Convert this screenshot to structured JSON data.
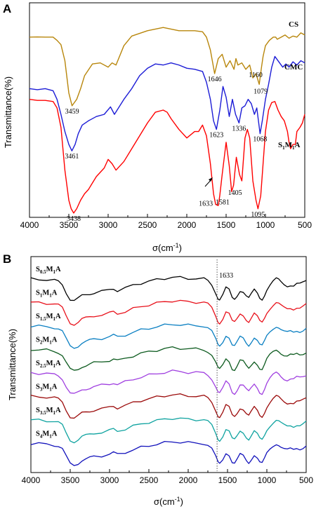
{
  "chart_data": [
    {
      "panel": "A",
      "type": "line",
      "xlabel": "σ(cm-1)",
      "ylabel": "Transmittance(%)",
      "xlim": [
        4000,
        500
      ],
      "x_reversed": true,
      "xticks": [
        4000,
        3500,
        3000,
        2500,
        2000,
        1500,
        1000,
        500
      ],
      "series": [
        {
          "name": "CS",
          "color": "#b8860b",
          "x": [
            4000,
            3900,
            3800,
            3700,
            3650,
            3600,
            3550,
            3500,
            3459,
            3400,
            3350,
            3300,
            3200,
            3100,
            3000,
            2950,
            2900,
            2800,
            2700,
            2500,
            2300,
            2100,
            1900,
            1800,
            1750,
            1700,
            1646,
            1600,
            1550,
            1500,
            1450,
            1400,
            1375,
            1350,
            1300,
            1250,
            1200,
            1160,
            1120,
            1079,
            1050,
            1030,
            1000,
            950,
            900,
            870,
            850,
            800,
            750,
            700,
            650,
            600,
            550,
            500
          ],
          "y": [
            16.0,
            15.9,
            16.0,
            16.0,
            17.5,
            19.5,
            27.0,
            42.0,
            48.0,
            45.0,
            40.0,
            34.0,
            28.5,
            28.0,
            30.0,
            28.0,
            29.0,
            20.0,
            15.5,
            13.0,
            11.5,
            13.0,
            13.0,
            13.5,
            16.0,
            22.0,
            33.0,
            26.0,
            24.0,
            30.0,
            27.0,
            31.0,
            26.0,
            29.0,
            28.0,
            31.0,
            29.0,
            35.0,
            33.0,
            38.0,
            30.0,
            25.0,
            20.0,
            17.5,
            16.0,
            16.0,
            17.0,
            16.0,
            15.0,
            16.5,
            15.5,
            16.0,
            14.0,
            15.0
          ],
          "peaks": [
            3459,
            1646,
            1160,
            1079
          ]
        },
        {
          "name": "CMC",
          "color": "#1c1cd6",
          "x": [
            4000,
            3900,
            3800,
            3700,
            3650,
            3600,
            3550,
            3500,
            3461,
            3420,
            3380,
            3330,
            3250,
            3150,
            3050,
            2970,
            2920,
            2800,
            2700,
            2600,
            2500,
            2400,
            2300,
            2200,
            2100,
            2000,
            1900,
            1800,
            1750,
            1700,
            1660,
            1623,
            1580,
            1540,
            1500,
            1460,
            1420,
            1380,
            1336,
            1300,
            1260,
            1220,
            1180,
            1140,
            1110,
            1068,
            1040,
            1000,
            960,
            920,
            880,
            860,
            820,
            780,
            740,
            700,
            650,
            600,
            550,
            500
          ],
          "y": [
            40.0,
            40.5,
            40.0,
            41.0,
            45.0,
            52.0,
            60.0,
            66.0,
            69.0,
            66.0,
            61.0,
            57.0,
            55.0,
            53.0,
            52.0,
            48.5,
            52.0,
            45.0,
            40.0,
            34.0,
            30.5,
            28.5,
            29.0,
            28.0,
            29.0,
            30.5,
            31.0,
            32.0,
            37.0,
            45.0,
            55.0,
            59.0,
            50.0,
            39.0,
            44.0,
            53.0,
            45.0,
            52.0,
            56.0,
            49.0,
            48.0,
            45.0,
            47.0,
            52.0,
            49.0,
            61.0,
            55.0,
            45.0,
            38.0,
            30.0,
            25.0,
            26.0,
            28.0,
            30.0,
            28.5,
            30.0,
            27.5,
            29.0,
            27.0,
            28.0
          ],
          "peaks": [
            3461,
            1623,
            1336,
            1068
          ]
        },
        {
          "name": "S1M1A",
          "color": "#ff0000",
          "x": [
            4000,
            3900,
            3800,
            3700,
            3650,
            3600,
            3550,
            3500,
            3470,
            3438,
            3400,
            3350,
            3300,
            3250,
            3200,
            3150,
            3100,
            3050,
            3000,
            2950,
            2900,
            2800,
            2700,
            2600,
            2500,
            2400,
            2300,
            2250,
            2200,
            2100,
            2000,
            1900,
            1850,
            1800,
            1750,
            1700,
            1660,
            1633,
            1600,
            1581,
            1550,
            1500,
            1460,
            1430,
            1405,
            1370,
            1330,
            1300,
            1260,
            1230,
            1200,
            1160,
            1120,
            1095,
            1060,
            1030,
            1000,
            960,
            920,
            880,
            860,
            840,
            800,
            760,
            720,
            700,
            680,
            650,
            620,
            600,
            560,
            530,
            500
          ],
          "y": [
            45.0,
            45.5,
            45.5,
            46.0,
            49.0,
            58.0,
            78.0,
            92.0,
            96.0,
            98.0,
            96.0,
            92.0,
            89.0,
            87.0,
            84.0,
            81.0,
            79.0,
            77.0,
            73.0,
            75.0,
            78.0,
            74.0,
            68.0,
            62.0,
            56.0,
            51.0,
            50.0,
            51.0,
            54.0,
            59.0,
            63.0,
            60.0,
            60.0,
            57.0,
            62.0,
            75.0,
            89.0,
            94.0,
            94.5,
            90.0,
            80.0,
            65.0,
            76.0,
            88.0,
            85.0,
            72.0,
            80.0,
            83.0,
            63.0,
            59.0,
            63.0,
            83.0,
            92.0,
            96.0,
            90.0,
            75.0,
            60.0,
            50.0,
            46.5,
            46.0,
            48.0,
            50.0,
            53.0,
            55.0,
            60.0,
            65.0,
            68.0,
            66.0,
            66.0,
            60.0,
            58.0,
            56.0,
            52.0
          ],
          "peaks": [
            3438,
            1633,
            1581,
            1405,
            1095
          ]
        }
      ]
    },
    {
      "panel": "B",
      "type": "line",
      "xlabel": "σ(cm-1)",
      "ylabel": "Transmittance(%)",
      "xlim": [
        4000,
        500
      ],
      "x_reversed": true,
      "xticks": [
        4000,
        3500,
        3000,
        2500,
        2000,
        1500,
        1000,
        500
      ],
      "reference_line": 1633,
      "series": [
        {
          "name": "S0.5M1A",
          "color": "#000000",
          "offset": 0
        },
        {
          "name": "S1M1A",
          "color": "#e8101a",
          "offset": 1
        },
        {
          "name": "S1.5M1A",
          "color": "#0a7fc2",
          "offset": 2
        },
        {
          "name": "S2M1A",
          "color": "#0c5a1e",
          "offset": 3
        },
        {
          "name": "S2.5M1A",
          "color": "#a040e0",
          "offset": 4
        },
        {
          "name": "S3M1A",
          "color": "#9b0a0a",
          "offset": 5
        },
        {
          "name": "S3.5M1A",
          "color": "#0fa3a0",
          "offset": 6
        },
        {
          "name": "S4M1A",
          "color": "#1111bb",
          "offset": 7
        }
      ],
      "template_x": [
        4000,
        3900,
        3800,
        3700,
        3650,
        3600,
        3550,
        3500,
        3450,
        3400,
        3350,
        3300,
        3250,
        3200,
        3100,
        3000,
        2950,
        2900,
        2800,
        2700,
        2600,
        2500,
        2400,
        2300,
        2200,
        2100,
        2000,
        1900,
        1800,
        1750,
        1700,
        1650,
        1620,
        1600,
        1560,
        1520,
        1480,
        1440,
        1410,
        1380,
        1340,
        1300,
        1260,
        1230,
        1200,
        1160,
        1120,
        1090,
        1060,
        1030,
        1000,
        960,
        920,
        880,
        850,
        820,
        780,
        740,
        700,
        660,
        620,
        580,
        540,
        500
      ],
      "template_y": [
        0.0,
        0.1,
        0.3,
        0.7,
        1.2,
        2.5,
        6.0,
        9.0,
        9.6,
        8.8,
        7.5,
        7.0,
        6.5,
        6.0,
        5.5,
        4.8,
        4.2,
        5.0,
        4.0,
        2.8,
        1.8,
        1.0,
        0.3,
        -0.3,
        -0.8,
        -0.6,
        -0.3,
        -0.2,
        0.0,
        0.8,
        2.5,
        6.0,
        8.5,
        9.0,
        7.0,
        4.0,
        5.0,
        8.5,
        9.0,
        7.5,
        5.0,
        5.5,
        7.5,
        8.5,
        7.0,
        5.0,
        6.5,
        8.5,
        9.0,
        7.0,
        4.5,
        2.5,
        1.0,
        0.0,
        0.5,
        1.5,
        2.5,
        3.0,
        2.5,
        2.8,
        2.0,
        2.3,
        1.8,
        1.0
      ]
    }
  ],
  "labels": {
    "panel_a": "A",
    "panel_b": "B",
    "ylabel": "Transmittance(%)",
    "xlabel_base": "σ(cm",
    "xlabel_exp": "-1",
    "xlabel_close": ")",
    "ticks": [
      "4000",
      "3500",
      "3000",
      "2500",
      "2000",
      "1500",
      "1000",
      "500"
    ],
    "peak_1633_b": "1633",
    "cs": "CS",
    "cmc": "CMC"
  }
}
